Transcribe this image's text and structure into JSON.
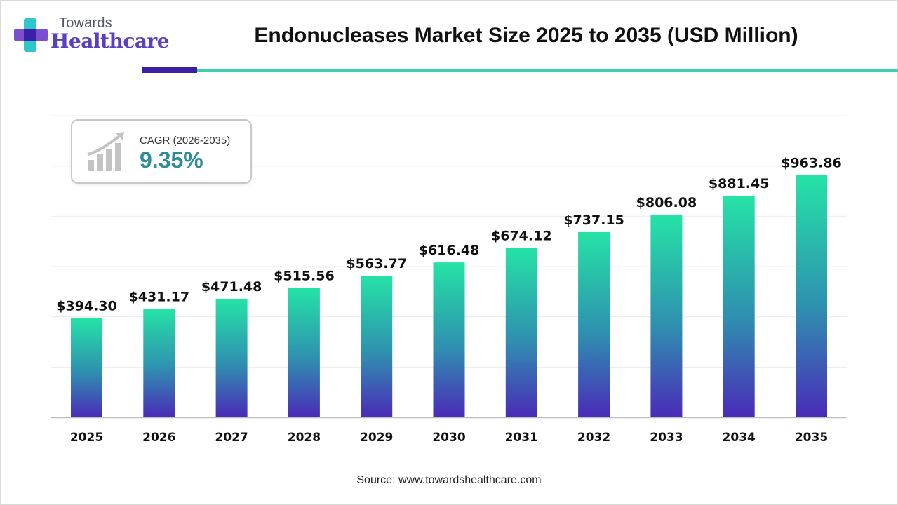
{
  "logo": {
    "line1": "Towards",
    "line2": "Healthcare"
  },
  "title": "Endonucleases Market Size 2025 to 2035 (USD Million)",
  "cagr": {
    "label": "CAGR (2026-2035)",
    "value": "9.35%"
  },
  "source": "Source: www.towardshealthcare.com",
  "colors": {
    "bar_top": "#25e3a6",
    "bar_bottom": "#4a2bb8",
    "accent_dark": "#3b1fa5",
    "accent_teal": "#3ecfae",
    "cagr_text": "#2e8b9a"
  },
  "chart_data": {
    "type": "bar",
    "title": "Endonucleases Market Size 2025 to 2035 (USD Million)",
    "categories": [
      "2025",
      "2026",
      "2027",
      "2028",
      "2029",
      "2030",
      "2031",
      "2032",
      "2033",
      "2034",
      "2035"
    ],
    "values": [
      394.3,
      431.17,
      471.48,
      515.56,
      563.77,
      616.48,
      674.12,
      737.15,
      806.08,
      881.45,
      963.86
    ],
    "value_labels": [
      "$394.30",
      "$431.17",
      "$471.48",
      "$515.56",
      "$563.77",
      "$616.48",
      "$674.12",
      "$737.15",
      "$806.08",
      "$881.45",
      "$963.86"
    ],
    "xlabel": "",
    "ylabel": "",
    "ylim": [
      0,
      1200
    ],
    "grid": true,
    "legend": "none"
  }
}
